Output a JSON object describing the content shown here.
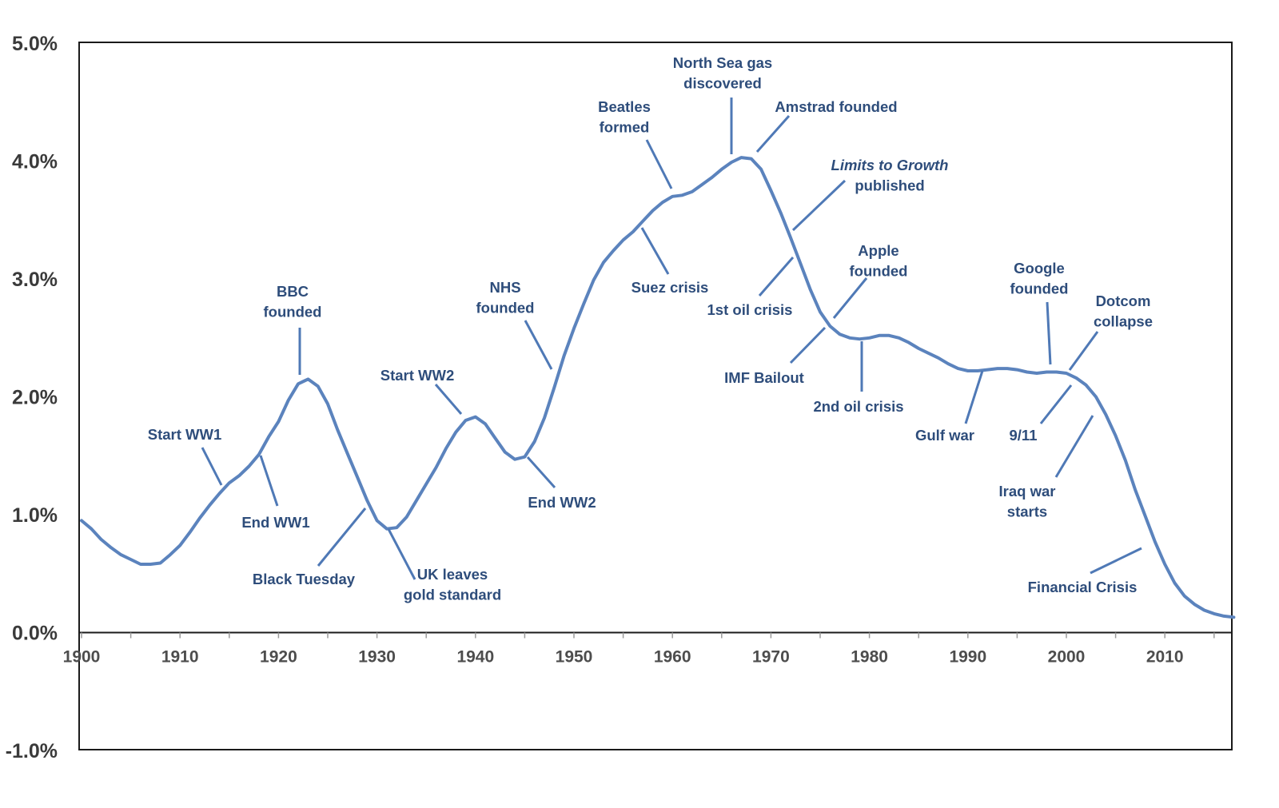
{
  "chart_data": {
    "type": "line",
    "title": "",
    "xlabel": "",
    "ylabel": "",
    "xlim": [
      1900,
      2017
    ],
    "ylim": [
      -1.0,
      5.0
    ],
    "grid": false,
    "legend": "none",
    "color": "#5b83bd",
    "annotation_color": "#2e4d7b",
    "x_ticks": [
      "1900",
      "1910",
      "1920",
      "1930",
      "1940",
      "1950",
      "1960",
      "1970",
      "1980",
      "1990",
      "2000",
      "2010"
    ],
    "y_ticks": [
      "5.0%",
      "4.0%",
      "3.0%",
      "2.0%",
      "1.0%",
      "0.0%",
      "-1.0%"
    ],
    "series": [
      {
        "name": "rate",
        "x": [
          1900,
          1901,
          1902,
          1903,
          1904,
          1905,
          1906,
          1907,
          1908,
          1909,
          1910,
          1911,
          1912,
          1913,
          1914,
          1915,
          1916,
          1917,
          1918,
          1919,
          1920,
          1921,
          1922,
          1923,
          1924,
          1925,
          1926,
          1927,
          1928,
          1929,
          1930,
          1931,
          1932,
          1933,
          1934,
          1935,
          1936,
          1937,
          1938,
          1939,
          1940,
          1941,
          1942,
          1943,
          1944,
          1945,
          1946,
          1947,
          1948,
          1949,
          1950,
          1951,
          1952,
          1953,
          1954,
          1955,
          1956,
          1957,
          1958,
          1959,
          1960,
          1961,
          1962,
          1963,
          1964,
          1965,
          1966,
          1967,
          1968,
          1969,
          1970,
          1971,
          1972,
          1973,
          1974,
          1975,
          1976,
          1977,
          1978,
          1979,
          1980,
          1981,
          1982,
          1983,
          1984,
          1985,
          1986,
          1987,
          1988,
          1989,
          1990,
          1991,
          1992,
          1993,
          1994,
          1995,
          1996,
          1997,
          1998,
          1999,
          2000,
          2001,
          2002,
          2003,
          2004,
          2005,
          2006,
          2007,
          2008,
          2009,
          2010,
          2011,
          2012,
          2013,
          2014,
          2015,
          2016,
          2017
        ],
        "values": [
          0.95,
          0.88,
          0.79,
          0.72,
          0.66,
          0.62,
          0.58,
          0.58,
          0.59,
          0.66,
          0.74,
          0.85,
          0.97,
          1.08,
          1.18,
          1.27,
          1.33,
          1.41,
          1.51,
          1.66,
          1.79,
          1.97,
          2.11,
          2.15,
          2.09,
          1.94,
          1.72,
          1.52,
          1.32,
          1.12,
          0.95,
          0.88,
          0.89,
          0.98,
          1.12,
          1.26,
          1.4,
          1.56,
          1.7,
          1.8,
          1.83,
          1.77,
          1.65,
          1.53,
          1.47,
          1.49,
          1.62,
          1.82,
          2.08,
          2.35,
          2.58,
          2.79,
          2.99,
          3.14,
          3.24,
          3.33,
          3.4,
          3.49,
          3.58,
          3.65,
          3.7,
          3.71,
          3.74,
          3.8,
          3.86,
          3.93,
          3.99,
          4.03,
          4.02,
          3.93,
          3.75,
          3.56,
          3.35,
          3.13,
          2.91,
          2.72,
          2.6,
          2.53,
          2.5,
          2.49,
          2.5,
          2.52,
          2.52,
          2.5,
          2.46,
          2.41,
          2.37,
          2.33,
          2.28,
          2.24,
          2.22,
          2.22,
          2.23,
          2.24,
          2.24,
          2.23,
          2.21,
          2.2,
          2.21,
          2.21,
          2.2,
          2.16,
          2.1,
          2.0,
          1.85,
          1.67,
          1.46,
          1.21,
          0.99,
          0.77,
          0.58,
          0.42,
          0.31,
          0.24,
          0.19,
          0.16,
          0.14,
          0.13
        ]
      }
    ],
    "annotations": [
      {
        "lines": [
          "Start WW1"
        ],
        "year": 1914
      },
      {
        "lines": [
          "End WW1"
        ],
        "year": 1918
      },
      {
        "lines": [
          "BBC",
          "founded"
        ],
        "year": 1922
      },
      {
        "lines": [
          "Black Tuesday"
        ],
        "year": 1929
      },
      {
        "lines": [
          "UK leaves",
          "gold standard"
        ],
        "year": 1931
      },
      {
        "lines": [
          "Start WW2"
        ],
        "year": 1939
      },
      {
        "lines": [
          "End WW2"
        ],
        "year": 1945
      },
      {
        "lines": [
          "NHS",
          "founded"
        ],
        "year": 1948
      },
      {
        "lines": [
          "Suez crisis"
        ],
        "year": 1956
      },
      {
        "lines": [
          "Beatles",
          "formed"
        ],
        "year": 1960
      },
      {
        "lines": [
          "North Sea gas",
          "discovered"
        ],
        "year": 1965
      },
      {
        "lines": [
          "Amstrad founded"
        ],
        "year": 1968
      },
      {
        "lines": [
          "Limits  to Growth",
          "published"
        ],
        "year": 1972,
        "italic_first_line": true
      },
      {
        "lines": [
          "1st oil crisis"
        ],
        "year": 1973
      },
      {
        "lines": [
          "Apple",
          "founded"
        ],
        "year": 1976
      },
      {
        "lines": [
          "IMF Bailout"
        ],
        "year": 1976
      },
      {
        "lines": [
          "2nd oil crisis"
        ],
        "year": 1979
      },
      {
        "lines": [
          "Gulf war"
        ],
        "year": 1990
      },
      {
        "lines": [
          "Google",
          "founded"
        ],
        "year": 1998
      },
      {
        "lines": [
          "Dotcom",
          "collapse"
        ],
        "year": 2000
      },
      {
        "lines": [
          "9/11"
        ],
        "year": 2001
      },
      {
        "lines": [
          "Iraq war",
          "starts"
        ],
        "year": 2003
      },
      {
        "lines": [
          "Financial Crisis"
        ],
        "year": 2008
      }
    ]
  }
}
